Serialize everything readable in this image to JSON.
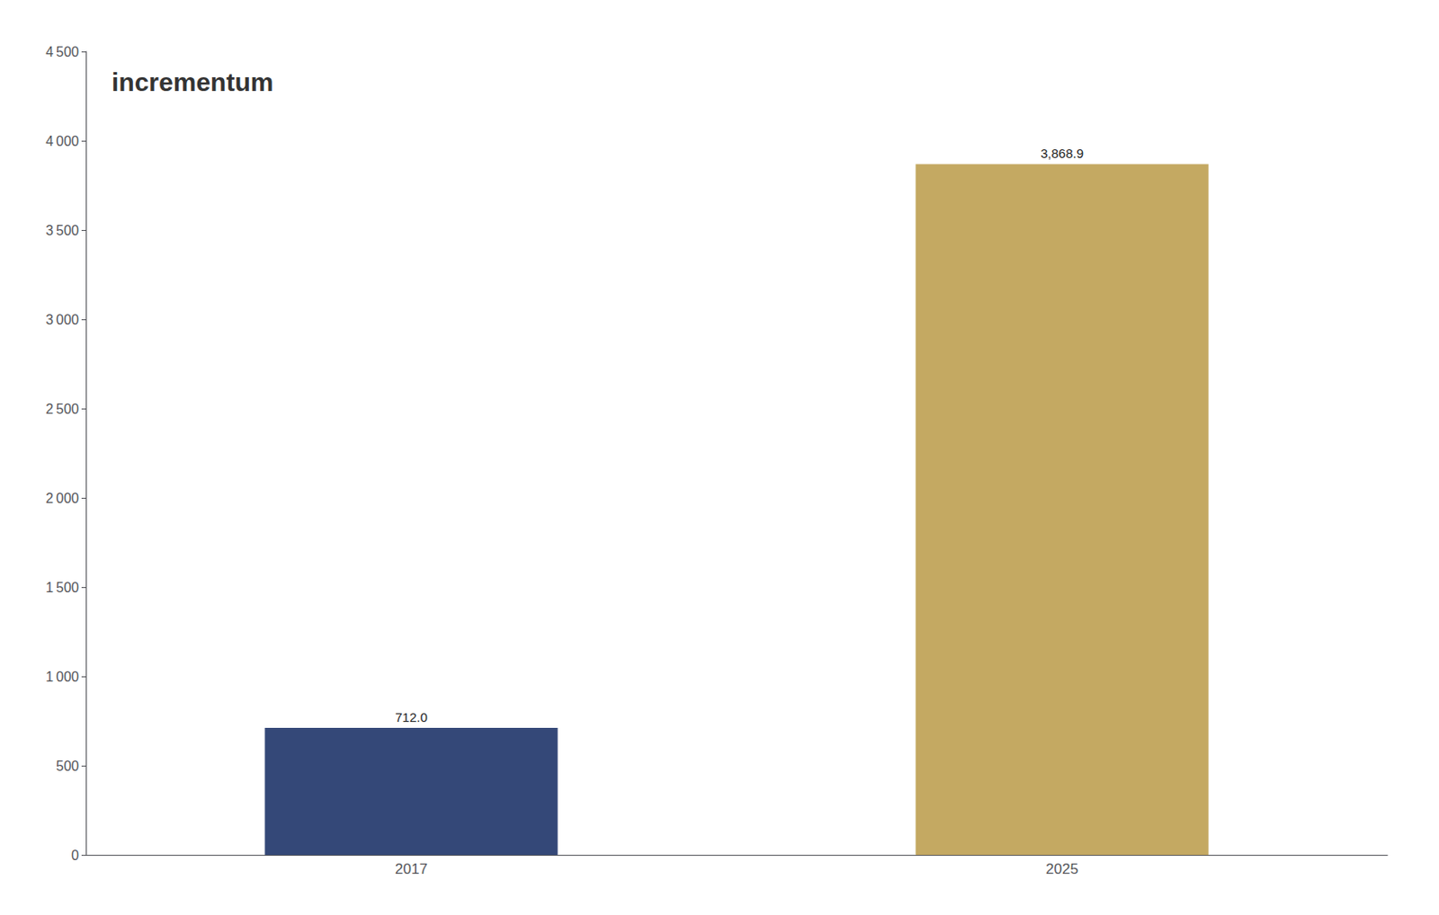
{
  "chart_data": {
    "type": "bar",
    "categories": [
      "2017",
      "2025"
    ],
    "values": [
      712.0,
      3868.9
    ],
    "value_labels": [
      "712.0",
      "3,868.9"
    ],
    "data_labels": true,
    "colors": [
      "#344878",
      "#C4A962"
    ],
    "ylim": [
      0,
      4500
    ],
    "yticks": [
      0,
      500,
      {
        "value": 1000,
        "label": "1 000"
      },
      {
        "value": 1500,
        "label": "1 500"
      },
      {
        "value": 2000,
        "label": "2 000"
      },
      {
        "value": 2500,
        "label": "2 500"
      },
      {
        "value": 3000,
        "label": "3 000"
      },
      {
        "value": 3500,
        "label": "3 500"
      },
      {
        "value": 4000,
        "label": "4 000"
      },
      {
        "value": 4500,
        "label": "4 500"
      }
    ],
    "grid": false,
    "annotations": [
      "incrementum"
    ]
  }
}
